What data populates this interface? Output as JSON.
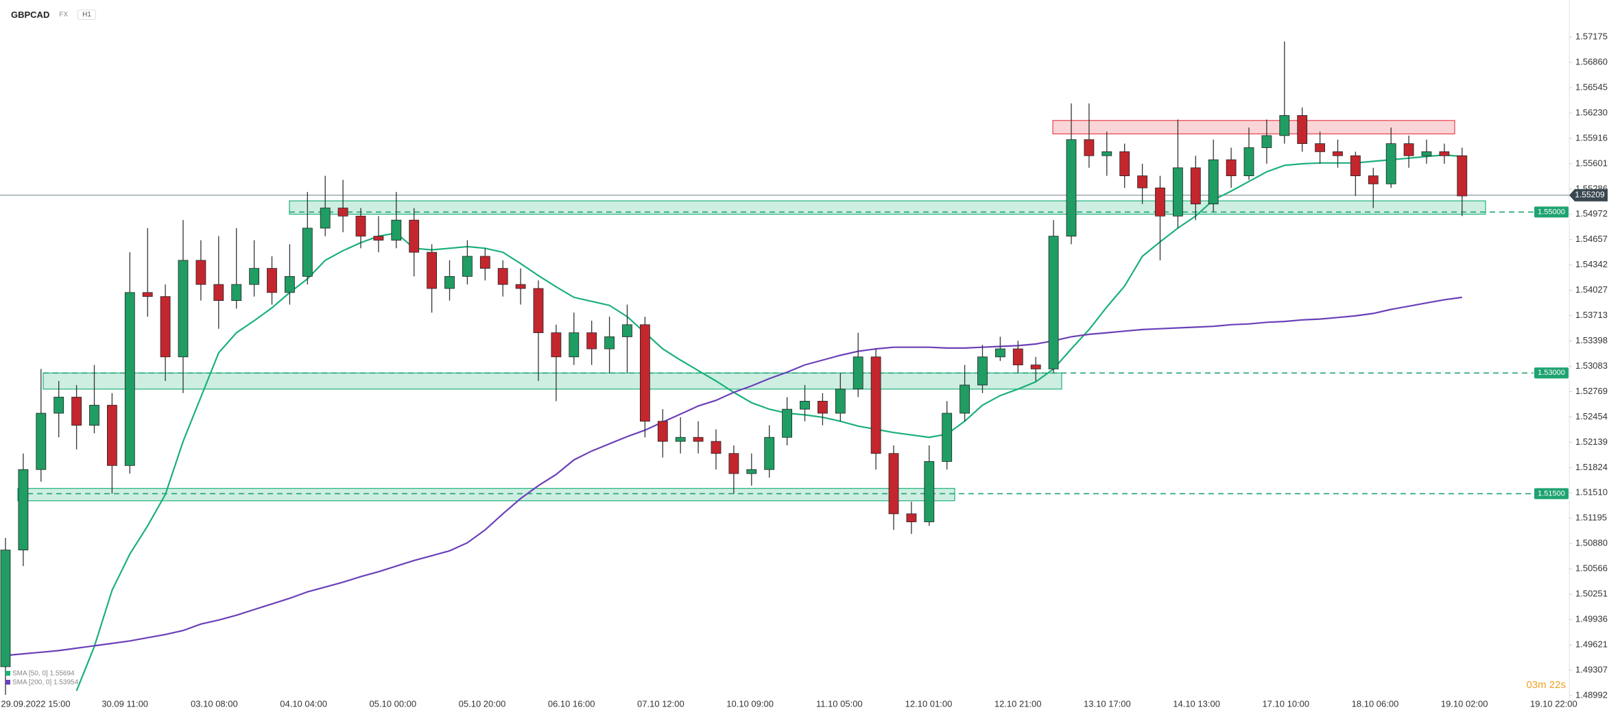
{
  "header": {
    "symbol": "GBPCAD",
    "market": "FX",
    "interval": "H1"
  },
  "timer": "03m 22s",
  "chart_data": {
    "type": "candlestick",
    "ylim": [
      1.48949,
      1.57635
    ],
    "yticks": [
      1.57175,
      {
        "value": 1.5686,
        "label": "1.56860"
      },
      1.56545,
      {
        "value": 1.5623,
        "label": "1.56230"
      },
      1.55916,
      1.55601,
      1.55286,
      1.54972,
      1.54657,
      1.54342,
      1.54027,
      1.53713,
      1.53398,
      1.53083,
      1.52769,
      1.52454,
      1.52139,
      1.51824,
      {
        "value": 1.5151,
        "label": "1.51510"
      },
      1.51195,
      {
        "value": 1.5088,
        "label": "1.50880"
      },
      1.50566,
      1.50251,
      1.49936,
      1.49621,
      1.49307,
      1.48992
    ],
    "xticks": [
      "29.09.2022 15:00",
      "30.09 11:00",
      "03.10 08:00",
      "04.10 04:00",
      "05.10 00:00",
      "05.10 20:00",
      "06.10 16:00",
      "07.10 12:00",
      "10.10 09:00",
      "11.10 05:00",
      "12.10 01:00",
      "12.10 21:00",
      "13.10 17:00",
      "14.10 13:00",
      "17.10 10:00",
      "18.10 06:00",
      "19.10 02:00",
      "19.10 22:00"
    ],
    "up_color": "#1f9d63",
    "down_color": "#c4262e",
    "candles": [
      [
        1.4935,
        1.5095,
        1.49,
        1.508
      ],
      [
        1.508,
        1.52,
        1.506,
        1.518
      ],
      [
        1.518,
        1.5305,
        1.5165,
        1.525
      ],
      [
        1.525,
        1.529,
        1.522,
        1.527
      ],
      [
        1.527,
        1.5285,
        1.5205,
        1.5235
      ],
      [
        1.5235,
        1.531,
        1.5225,
        1.526
      ],
      [
        1.526,
        1.5275,
        1.515,
        1.5185
      ],
      [
        1.5185,
        1.545,
        1.5175,
        1.54
      ],
      [
        1.54,
        1.548,
        1.537,
        1.5395
      ],
      [
        1.5395,
        1.541,
        1.529,
        1.532
      ],
      [
        1.532,
        1.549,
        1.5275,
        1.544
      ],
      [
        1.544,
        1.5465,
        1.539,
        1.541
      ],
      [
        1.541,
        1.547,
        1.5355,
        1.539
      ],
      [
        1.539,
        1.548,
        1.538,
        1.541
      ],
      [
        1.541,
        1.5465,
        1.5395,
        1.543
      ],
      [
        1.543,
        1.5445,
        1.5385,
        1.54
      ],
      [
        1.54,
        1.546,
        1.5385,
        1.542
      ],
      [
        1.542,
        1.5525,
        1.541,
        1.548
      ],
      [
        1.548,
        1.5545,
        1.547,
        1.5505
      ],
      [
        1.5505,
        1.554,
        1.5475,
        1.5495
      ],
      [
        1.5495,
        1.5505,
        1.5455,
        1.547
      ],
      [
        1.547,
        1.5495,
        1.545,
        1.5465
      ],
      [
        1.5465,
        1.5525,
        1.5455,
        1.549
      ],
      [
        1.549,
        1.5505,
        1.542,
        1.545
      ],
      [
        1.545,
        1.546,
        1.5375,
        1.5405
      ],
      [
        1.5405,
        1.544,
        1.539,
        1.542
      ],
      [
        1.542,
        1.5465,
        1.541,
        1.5445
      ],
      [
        1.5445,
        1.5455,
        1.5415,
        1.543
      ],
      [
        1.543,
        1.544,
        1.5395,
        1.541
      ],
      [
        1.541,
        1.543,
        1.5385,
        1.5405
      ],
      [
        1.5405,
        1.5415,
        1.529,
        1.535
      ],
      [
        1.535,
        1.536,
        1.5265,
        1.532
      ],
      [
        1.532,
        1.5375,
        1.531,
        1.535
      ],
      [
        1.535,
        1.5365,
        1.531,
        1.533
      ],
      [
        1.533,
        1.537,
        1.53,
        1.5345
      ],
      [
        1.5345,
        1.5385,
        1.53,
        1.536
      ],
      [
        1.536,
        1.537,
        1.522,
        1.524
      ],
      [
        1.524,
        1.5255,
        1.5195,
        1.5215
      ],
      [
        1.5215,
        1.5245,
        1.52,
        1.522
      ],
      [
        1.522,
        1.524,
        1.52,
        1.5215
      ],
      [
        1.5215,
        1.523,
        1.518,
        1.52
      ],
      [
        1.52,
        1.521,
        1.515,
        1.5175
      ],
      [
        1.5175,
        1.52,
        1.516,
        1.518
      ],
      [
        1.518,
        1.5235,
        1.517,
        1.522
      ],
      [
        1.522,
        1.527,
        1.521,
        1.5255
      ],
      [
        1.5255,
        1.5285,
        1.524,
        1.5265
      ],
      [
        1.5265,
        1.5275,
        1.5235,
        1.525
      ],
      [
        1.525,
        1.53,
        1.524,
        1.528
      ],
      [
        1.528,
        1.535,
        1.527,
        1.532
      ],
      [
        1.532,
        1.533,
        1.518,
        1.52
      ],
      [
        1.52,
        1.521,
        1.5105,
        1.5125
      ],
      [
        1.5125,
        1.514,
        1.51,
        1.5115
      ],
      [
        1.5115,
        1.521,
        1.511,
        1.519
      ],
      [
        1.519,
        1.5265,
        1.518,
        1.525
      ],
      [
        1.525,
        1.531,
        1.524,
        1.5285
      ],
      [
        1.5285,
        1.5335,
        1.5275,
        1.532
      ],
      [
        1.532,
        1.5345,
        1.5315,
        1.533
      ],
      [
        1.533,
        1.534,
        1.53,
        1.531
      ],
      [
        1.531,
        1.532,
        1.529,
        1.5305
      ],
      [
        1.5305,
        1.549,
        1.53,
        1.547
      ],
      [
        1.547,
        1.5635,
        1.546,
        1.559
      ],
      [
        1.559,
        1.5635,
        1.5555,
        1.557
      ],
      [
        1.557,
        1.56,
        1.5545,
        1.5575
      ],
      [
        1.5575,
        1.5585,
        1.553,
        1.5545
      ],
      [
        1.5545,
        1.556,
        1.551,
        1.553
      ],
      [
        1.553,
        1.5545,
        1.544,
        1.5495
      ],
      [
        1.5495,
        1.5615,
        1.548,
        1.5555
      ],
      [
        1.5555,
        1.557,
        1.549,
        1.551
      ],
      [
        1.551,
        1.559,
        1.55,
        1.5565
      ],
      [
        1.5565,
        1.558,
        1.553,
        1.5545
      ],
      [
        1.5545,
        1.5605,
        1.554,
        1.558
      ],
      [
        1.558,
        1.5615,
        1.556,
        1.5595
      ],
      [
        1.5595,
        1.5712,
        1.5585,
        1.562
      ],
      [
        1.562,
        1.563,
        1.5575,
        1.5585
      ],
      [
        1.5585,
        1.56,
        1.556,
        1.5575
      ],
      [
        1.5575,
        1.559,
        1.5555,
        1.557
      ],
      [
        1.557,
        1.5575,
        1.552,
        1.5545
      ],
      [
        1.5545,
        1.5555,
        1.5505,
        1.5535
      ],
      [
        1.5535,
        1.5605,
        1.553,
        1.5585
      ],
      [
        1.5585,
        1.5595,
        1.5555,
        1.557
      ],
      [
        1.557,
        1.559,
        1.556,
        1.5575
      ],
      [
        1.5575,
        1.5585,
        1.556,
        1.557
      ],
      [
        1.557,
        1.558,
        1.5495,
        1.552
      ]
    ],
    "series": [
      {
        "name": "SMA [50, 0] 1.55694",
        "color": "#19b07a",
        "values": [
          null,
          null,
          null,
          null,
          1.4905,
          1.496,
          1.503,
          1.5075,
          1.511,
          1.5149,
          1.5215,
          1.527,
          1.5325,
          1.535,
          1.5365,
          1.5381,
          1.54,
          1.5417,
          1.544,
          1.5452,
          1.5462,
          1.547,
          1.5474,
          1.5455,
          1.5453,
          1.5455,
          1.5457,
          1.5455,
          1.545,
          1.5436,
          1.5421,
          1.5407,
          1.5394,
          1.5389,
          1.5384,
          1.537,
          1.535,
          1.533,
          1.5316,
          1.5303,
          1.529,
          1.5276,
          1.5263,
          1.5255,
          1.525,
          1.5248,
          1.5245,
          1.524,
          1.5234,
          1.523,
          1.5226,
          1.5223,
          1.522,
          1.5224,
          1.524,
          1.526,
          1.5272,
          1.528,
          1.5289,
          1.5305,
          1.533,
          1.5354,
          1.5382,
          1.5408,
          1.5445,
          1.5463,
          1.548,
          1.5495,
          1.5515,
          1.5526,
          1.5538,
          1.555,
          1.5558,
          1.556,
          1.5561,
          1.5561,
          1.5561,
          1.5563,
          1.5565,
          1.5567,
          1.5569,
          1.5571,
          1.5569
        ]
      },
      {
        "name": "SMA [200, 0] 1.53954",
        "color": "#6a3fb8",
        "values": [
          1.4949,
          1.4951,
          1.4953,
          1.4955,
          1.4958,
          1.4961,
          1.4964,
          1.4967,
          1.4971,
          1.4975,
          1.498,
          1.4988,
          1.4993,
          1.4999,
          1.5006,
          1.5013,
          1.502,
          1.5028,
          1.5034,
          1.504,
          1.5047,
          1.5053,
          1.506,
          1.5067,
          1.5073,
          1.5079,
          1.5089,
          1.5105,
          1.5125,
          1.5144,
          1.516,
          1.5174,
          1.5192,
          1.5203,
          1.5212,
          1.5221,
          1.5229,
          1.5239,
          1.5249,
          1.5259,
          1.5266,
          1.5276,
          1.5284,
          1.5293,
          1.5301,
          1.531,
          1.5316,
          1.5322,
          1.5327,
          1.533,
          1.5332,
          1.5332,
          1.5332,
          1.5331,
          1.5331,
          1.5332,
          1.5333,
          1.5334,
          1.5336,
          1.534,
          1.5345,
          1.5348,
          1.535,
          1.5352,
          1.5354,
          1.5355,
          1.5356,
          1.5357,
          1.5358,
          1.536,
          1.5361,
          1.5363,
          1.5364,
          1.5366,
          1.5367,
          1.5369,
          1.5371,
          1.5374,
          1.5379,
          1.5383,
          1.5387,
          1.5391,
          1.5394
        ]
      }
    ],
    "zones": [
      {
        "low": 1.55971,
        "high": 1.56138,
        "color": "#e8414b"
      },
      {
        "low": 1.54973,
        "high": 1.55139,
        "color": "#1fb27a"
      },
      {
        "low": 1.528,
        "high": 1.53,
        "color": "#1fb27a"
      },
      {
        "low": 1.51412,
        "high": 1.51566,
        "color": "#1fb27a"
      }
    ],
    "levels": [
      {
        "value": 1.55,
        "label": "1.55000"
      },
      {
        "value": 1.53,
        "label": "1.53000"
      },
      {
        "value": 1.515,
        "label": "1.51500"
      }
    ],
    "last": {
      "value": 1.55209,
      "label": "1.55209"
    }
  }
}
